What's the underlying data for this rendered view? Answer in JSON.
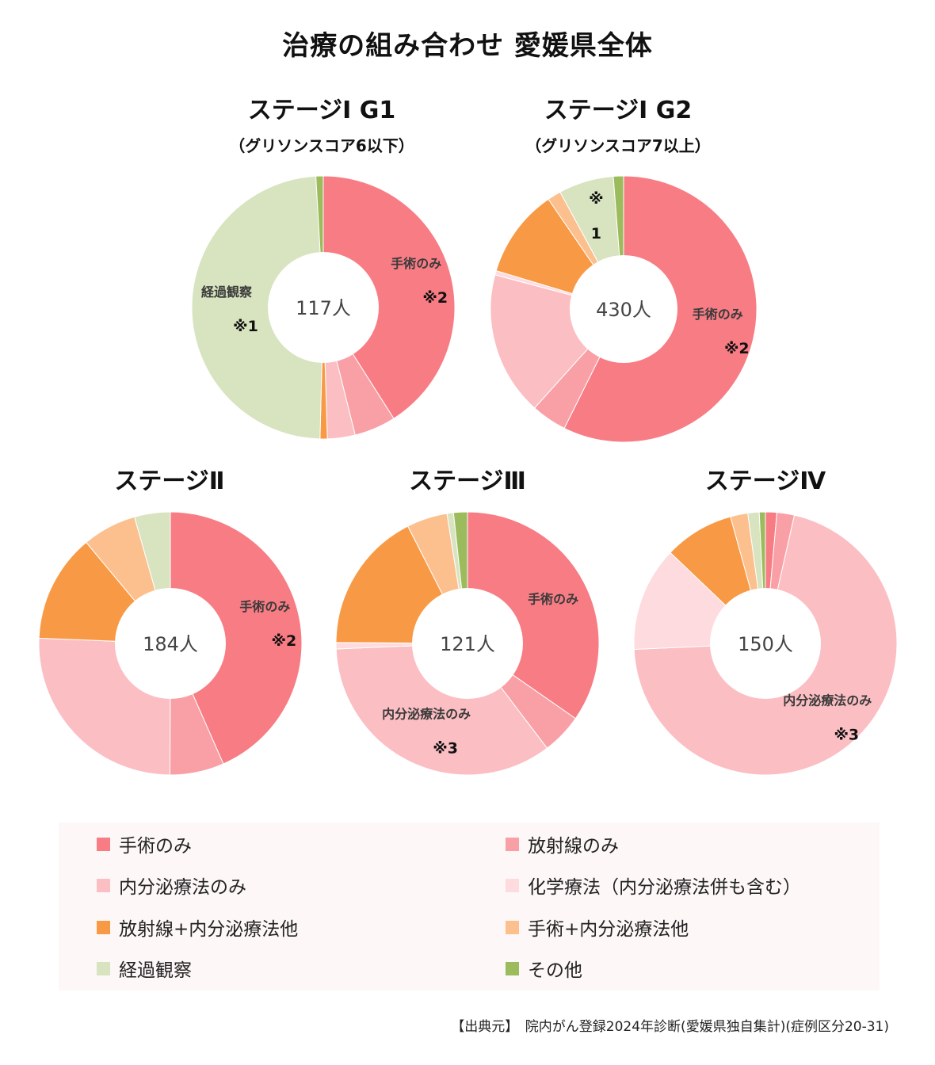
{
  "title": "治療の組み合わせ 愛媛県全体",
  "legend": [
    {
      "label": "手術のみ",
      "color": "#f87c84"
    },
    {
      "label": "放射線のみ",
      "color": "#f9a0a6"
    },
    {
      "label": "内分泌療法のみ",
      "color": "#fbbec3"
    },
    {
      "label": "化学療法（内分泌療法併も含む）",
      "color": "#fddbdf"
    },
    {
      "label": "放射線+内分泌療法他",
      "color": "#f89a45"
    },
    {
      "label": "手術+内分泌療法他",
      "color": "#fcc08e"
    },
    {
      "label": "経過観察",
      "color": "#d8e3bf"
    },
    {
      "label": "その他",
      "color": "#9bbb5c"
    }
  ],
  "source": "【出典元】　院内がん登録2024年診断(愛媛県独自集計)(症例区分20-31)",
  "chart_data": [
    {
      "type": "pie",
      "title": "ステージⅠ G1",
      "subtitle": "（グリソンスコア6以下）",
      "center": "117人",
      "categories": [
        "手術のみ",
        "放射線のみ",
        "内分泌療法のみ",
        "化学療法（内分泌療法併も含む）",
        "放射線+内分泌療法他",
        "手術+内分泌療法他",
        "経過観察",
        "その他"
      ],
      "values": [
        41.0,
        5.1,
        3.4,
        0.0,
        0.9,
        0.0,
        48.7,
        0.9
      ],
      "labels": [
        {
          "category": "手術のみ",
          "lines": [
            "手術のみ",
            "※2"
          ]
        },
        {
          "category": "経過観察",
          "lines": [
            "経過観察",
            "※1"
          ]
        }
      ]
    },
    {
      "type": "pie",
      "title": "ステージⅠ G2",
      "subtitle": "（グリソンスコア7以上）",
      "center": "430人",
      "categories": [
        "手術のみ",
        "放射線のみ",
        "内分泌療法のみ",
        "化学療法（内分泌療法併も含む）",
        "放射線+内分泌療法他",
        "手術+内分泌療法他",
        "経過観察",
        "その他"
      ],
      "values": [
        55.8,
        4.2,
        17.0,
        0.5,
        10.5,
        1.6,
        6.5,
        1.2
      ],
      "labels": [
        {
          "category": "手術のみ",
          "lines": [
            "手術のみ",
            "※2"
          ]
        },
        {
          "category": "経過観察",
          "lines": [
            "※",
            "1"
          ]
        }
      ]
    },
    {
      "type": "pie",
      "title": "ステージⅡ",
      "center": "184人",
      "categories": [
        "手術のみ",
        "放射線のみ",
        "内分泌療法のみ",
        "化学療法（内分泌療法併も含む）",
        "放射線+内分泌療法他",
        "手術+内分泌療法他",
        "経過観察",
        "その他"
      ],
      "values": [
        42.4,
        6.5,
        25.0,
        0.0,
        13.0,
        6.5,
        4.3,
        0.0
      ],
      "labels": [
        {
          "category": "手術のみ",
          "lines": [
            "手術のみ",
            "※2"
          ]
        }
      ]
    },
    {
      "type": "pie",
      "title": "ステージⅢ",
      "center": "121人",
      "categories": [
        "手術のみ",
        "放射線のみ",
        "内分泌療法のみ",
        "化学療法（内分泌療法併も含む）",
        "放射線+内分泌療法他",
        "手術+内分泌療法他",
        "経過観察",
        "その他"
      ],
      "values": [
        34.7,
        5.0,
        34.7,
        0.8,
        17.4,
        5.0,
        0.8,
        1.7
      ],
      "labels": [
        {
          "category": "手術のみ",
          "lines": [
            "手術のみ"
          ]
        },
        {
          "category": "内分泌療法のみ",
          "lines": [
            "内分泌療法のみ",
            "※3"
          ]
        }
      ]
    },
    {
      "type": "pie",
      "title": "ステージⅣ",
      "center": "150人",
      "categories": [
        "手術のみ",
        "放射線のみ",
        "内分泌療法のみ",
        "化学療法（内分泌療法併も含む）",
        "放射線+内分泌療法他",
        "手術+内分泌療法他",
        "経過観察",
        "その他"
      ],
      "values": [
        1.3,
        2.0,
        66.0,
        12.0,
        8.0,
        2.0,
        1.3,
        0.7
      ],
      "labels": [
        {
          "category": "内分泌療法のみ",
          "lines": [
            "内分泌療法のみ",
            "※3"
          ]
        }
      ]
    }
  ]
}
